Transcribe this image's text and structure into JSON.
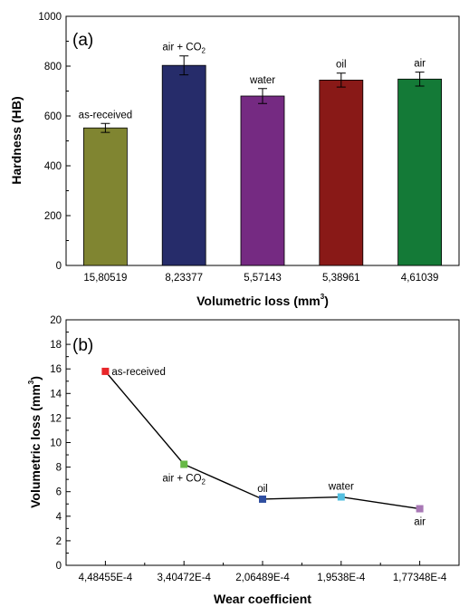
{
  "chart_data": [
    {
      "type": "bar",
      "panel_label": "(a)",
      "xlabel": {
        "text": "Volumetric loss (mm",
        "sup": "3",
        "end": ")"
      },
      "ylabel": "Hardness (HB)",
      "ylim": [
        0,
        1000
      ],
      "yticks": [
        0,
        200,
        400,
        600,
        800,
        1000
      ],
      "categories": [
        "15,80519",
        "8,23377",
        "5,57143",
        "5,38961",
        "4,61039"
      ],
      "values": [
        552,
        803,
        680,
        744,
        748
      ],
      "errors": [
        18,
        38,
        30,
        28,
        28
      ],
      "bar_labels": [
        {
          "text": "as-received",
          "sub": ""
        },
        {
          "text": "air + CO",
          "sub": "2"
        },
        {
          "text": "water",
          "sub": ""
        },
        {
          "text": "oil",
          "sub": ""
        },
        {
          "text": "air",
          "sub": ""
        }
      ],
      "colors": [
        "#808531",
        "#262C6A",
        "#752A82",
        "#891917",
        "#147A37"
      ],
      "grid": false
    },
    {
      "type": "line",
      "panel_label": "(b)",
      "xlabel": "Wear coefficient",
      "ylabel": {
        "text": "Volumetric loss (mm",
        "sup": "3",
        "end": ")"
      },
      "ylim": [
        0,
        20
      ],
      "yticks": [
        0,
        2,
        4,
        6,
        8,
        10,
        12,
        14,
        16,
        18,
        20
      ],
      "categories": [
        "4,48455E-4",
        "3,40472E-4",
        "2,06489E-4",
        "1,9538E-4",
        "1,77348E-4"
      ],
      "values": [
        15.8,
        8.23,
        5.39,
        5.57,
        4.61
      ],
      "point_labels": [
        {
          "text": "as-received",
          "sub": ""
        },
        {
          "text": "air + CO",
          "sub": "2"
        },
        {
          "text": "oil",
          "sub": ""
        },
        {
          "text": "water",
          "sub": ""
        },
        {
          "text": "air",
          "sub": ""
        }
      ],
      "marker_colors": [
        "#E8262A",
        "#66B845",
        "#2F4EA0",
        "#53BFE0",
        "#A878B5"
      ],
      "line_color": "#000000",
      "grid": false
    }
  ]
}
